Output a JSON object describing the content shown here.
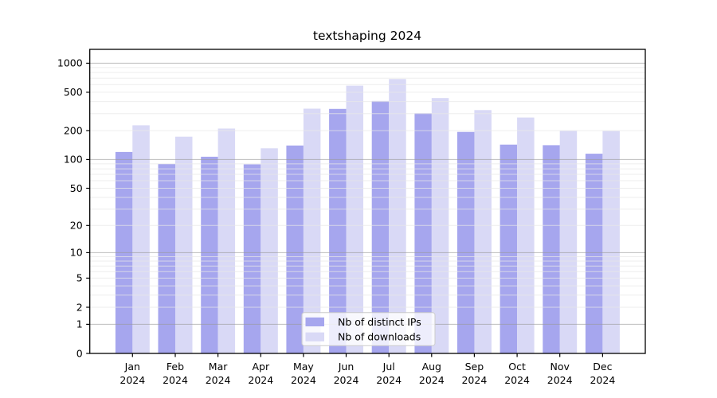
{
  "chart_data": {
    "type": "bar",
    "title": "textshaping 2024",
    "categories": [
      "Jan",
      "Feb",
      "Mar",
      "Apr",
      "May",
      "Jun",
      "Jul",
      "Aug",
      "Sep",
      "Oct",
      "Nov",
      "Dec"
    ],
    "category_year": "2024",
    "series": [
      {
        "name": "Nb of distinct IPs",
        "color": "#a6a6ee",
        "values": [
          120,
          90,
          107,
          89,
          140,
          336,
          406,
          303,
          194,
          143,
          141,
          115
        ]
      },
      {
        "name": "Nb of downloads",
        "color": "#d9d9f6",
        "values": [
          227,
          173,
          210,
          131,
          338,
          585,
          685,
          435,
          327,
          274,
          199,
          198
        ]
      }
    ],
    "y_ticks": [
      0,
      1,
      2,
      5,
      10,
      20,
      50,
      100,
      200,
      500,
      1000
    ],
    "scale": "log10(value+1)",
    "ylim": [
      0,
      1390
    ],
    "grid": true,
    "legend_position": "lower-center",
    "colors": {
      "major_grid": "#9a9a9a",
      "minor_grid": "#e8e8e8",
      "axis": "#000000",
      "legend_bg": "rgba(255,255,255,0.8)",
      "legend_border": "#cccccc"
    }
  }
}
